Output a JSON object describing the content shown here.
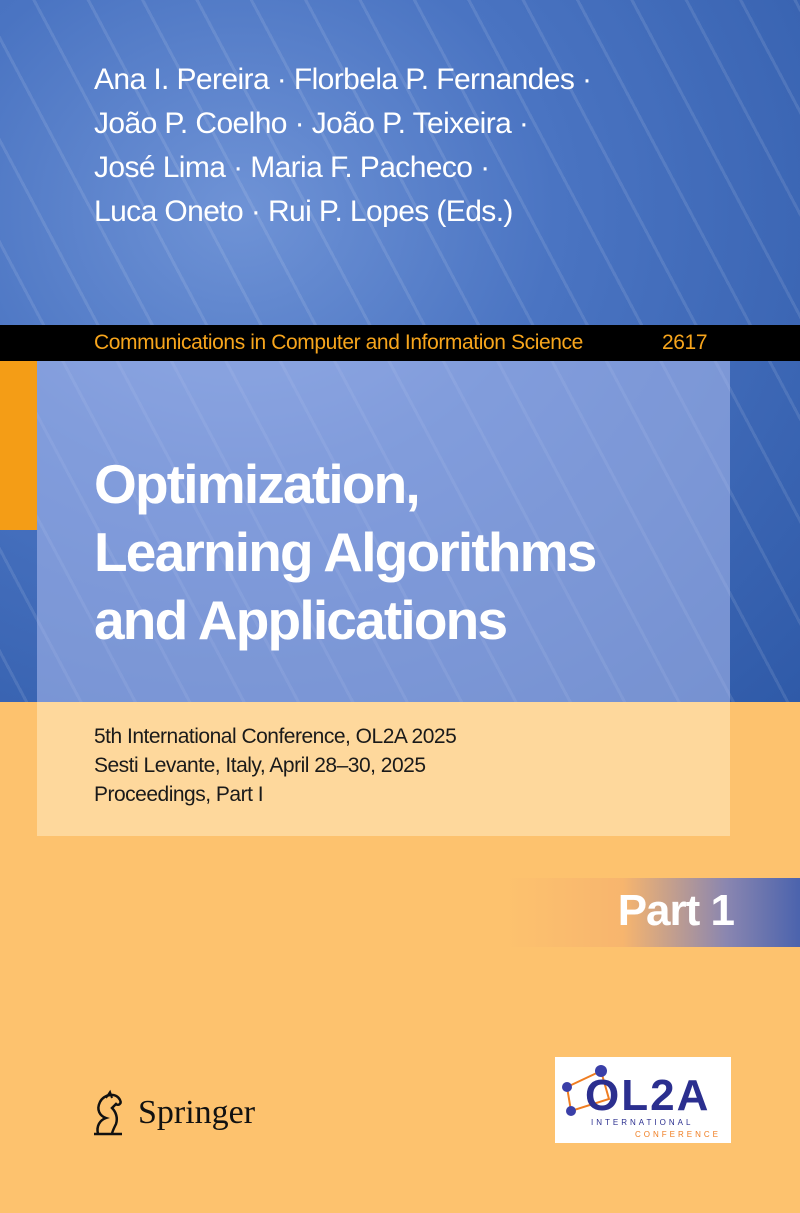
{
  "authors": [
    "Ana I. Pereira · Florbela P. Fernandes ·",
    "João P. Coelho · João P. Teixeira ·",
    "José Lima · Maria F. Pacheco ·",
    "Luca Oneto · Rui P. Lopes (Eds.)"
  ],
  "series": {
    "name": "Communications in Computer and Information Science",
    "number": "2617"
  },
  "title": [
    "Optimization,",
    "Learning Algorithms",
    "and Applications"
  ],
  "subtitle": [
    "5th International Conference, OL2A 2025",
    "Sesti Levante, Italy, April 28–30, 2025",
    "Proceedings, Part I"
  ],
  "part_label": "Part 1",
  "publisher": "Springer",
  "conference_logo": {
    "acronym": "OL2A",
    "line1": "INTERNATIONAL",
    "line2": "CONFERENCE"
  },
  "colors": {
    "blue": "#3a64b4",
    "orange": "#fdc26e",
    "accent": "#f49d16",
    "series_text": "#f7a51c"
  }
}
